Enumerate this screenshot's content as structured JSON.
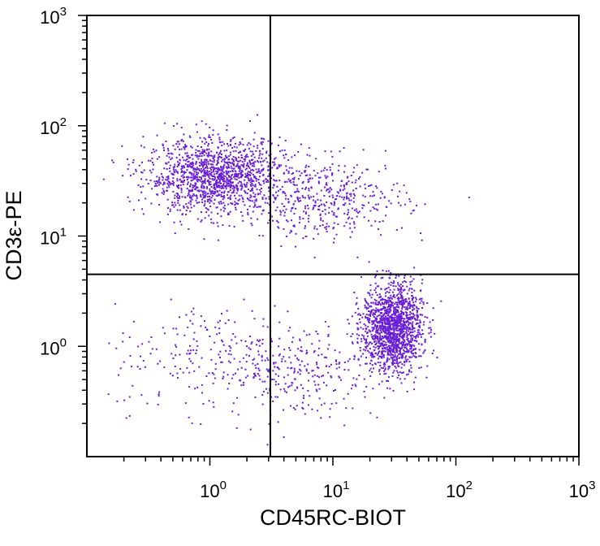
{
  "chart_data": {
    "type": "scatter",
    "subtype": "flow-cytometry-dot-plot",
    "xlabel": "CD45RC-BIOT",
    "ylabel": "CD3ε-PE",
    "x_scale": "log",
    "y_scale": "log",
    "xlim": [
      0.1,
      1000
    ],
    "ylim": [
      0.1,
      1000
    ],
    "x_ticks": [
      {
        "value": 1,
        "base": "10",
        "exp": "0"
      },
      {
        "value": 10,
        "base": "10",
        "exp": "1"
      },
      {
        "value": 100,
        "base": "10",
        "exp": "2"
      },
      {
        "value": 1000,
        "base": "10",
        "exp": "3"
      }
    ],
    "y_ticks": [
      {
        "value": 1,
        "base": "10",
        "exp": "0"
      },
      {
        "value": 10,
        "base": "10",
        "exp": "1"
      },
      {
        "value": 100,
        "base": "10",
        "exp": "2"
      },
      {
        "value": 1000,
        "base": "10",
        "exp": "3"
      }
    ],
    "grid": false,
    "point_color": "#6a1fd6",
    "gates": {
      "x": 3.1,
      "y": 4.5
    },
    "populations": [
      {
        "quadrant": "upper-left",
        "center": [
          1.1,
          35
        ],
        "count": 1400
      },
      {
        "quadrant": "upper-right",
        "center": [
          9,
          22
        ],
        "count": 420
      },
      {
        "quadrant": "lower-right",
        "center": [
          30,
          1.5
        ],
        "count": 1500
      },
      {
        "quadrant": "lower-left",
        "center": [
          1.2,
          0.8
        ],
        "count": 260
      },
      {
        "quadrant": "lower-right",
        "center": [
          6,
          0.6
        ],
        "count": 220
      }
    ]
  }
}
